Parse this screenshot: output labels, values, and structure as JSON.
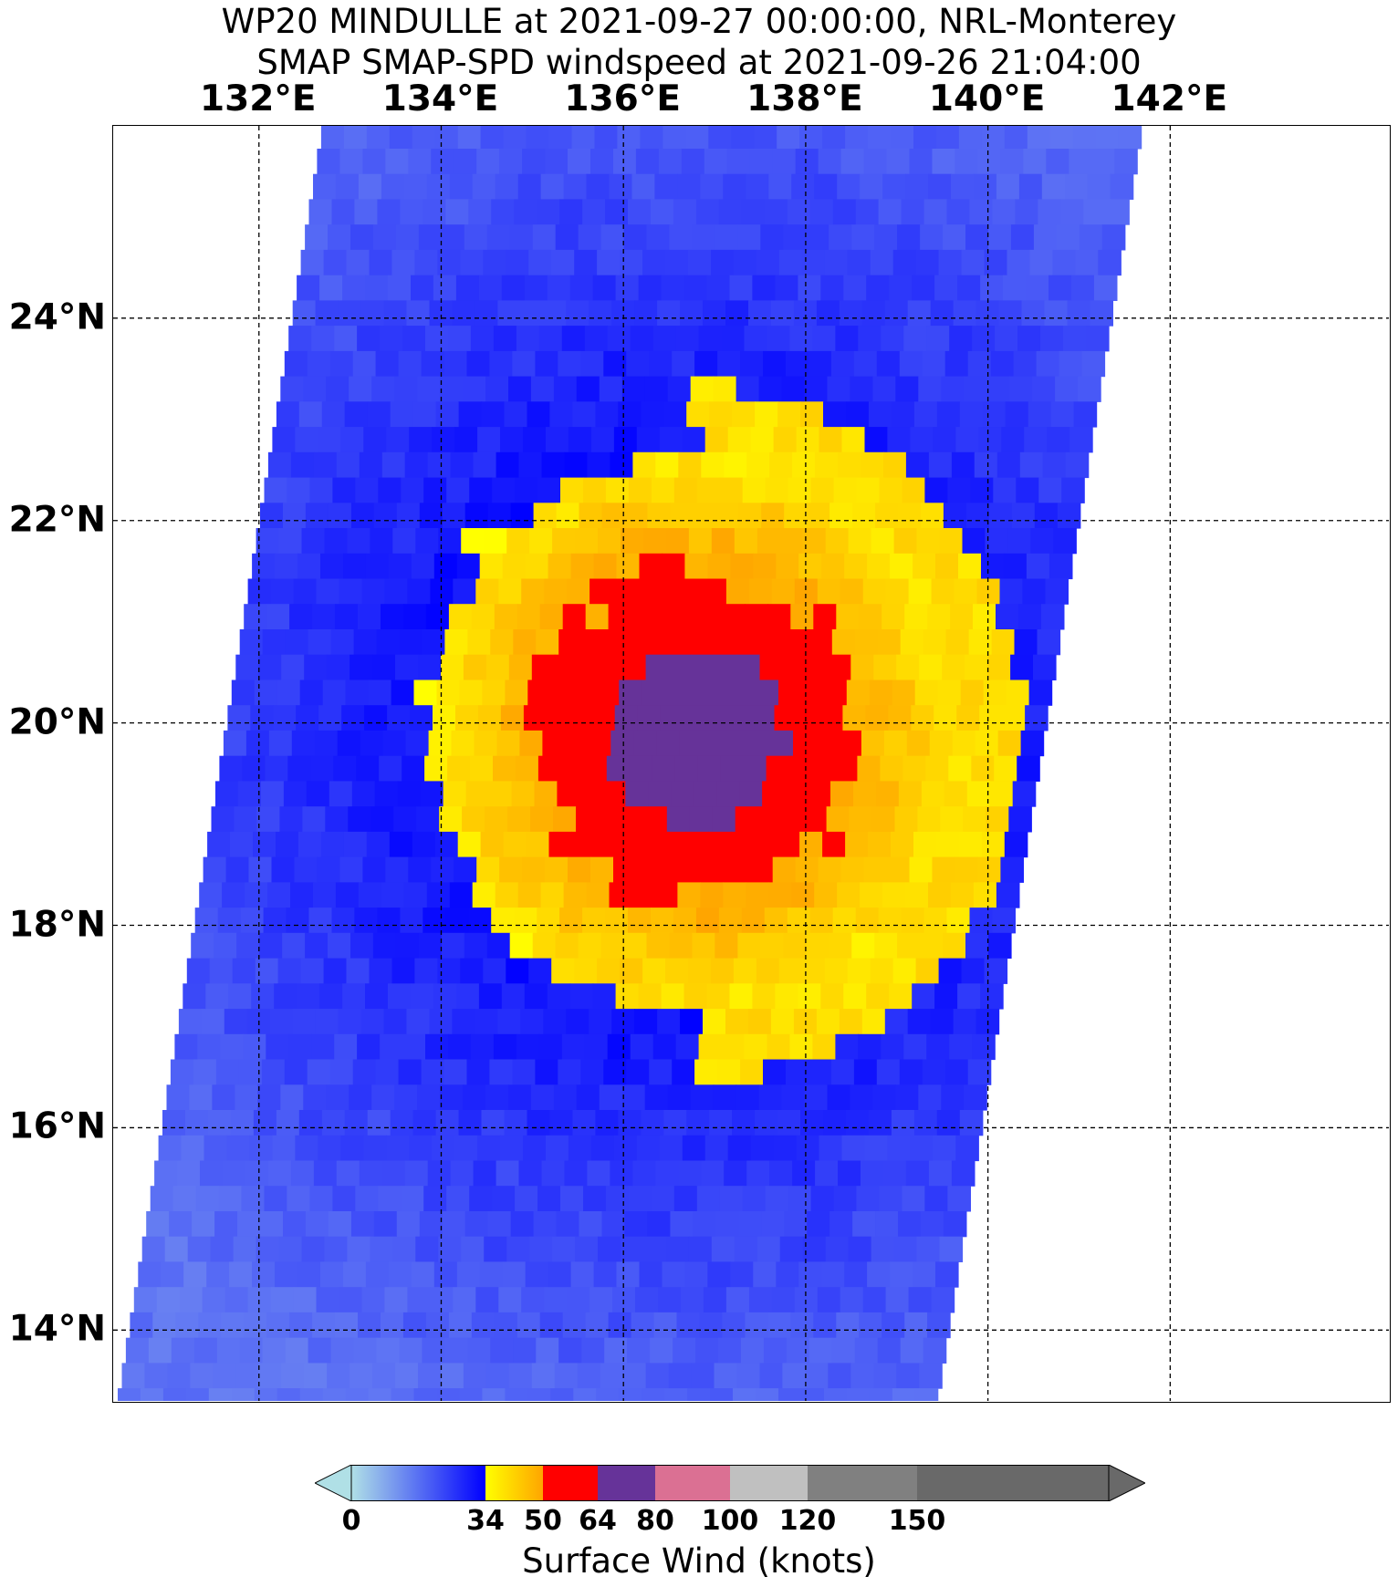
{
  "title": {
    "line1": "WP20 MINDULLE at 2021-09-27 00:00:00, NRL-Monterey",
    "line2": "SMAP SMAP-SPD windspeed at 2021-09-26 21:04:00"
  },
  "map": {
    "lon_range": [
      130.4,
      144.4
    ],
    "lat_range": [
      13.3,
      25.9
    ],
    "lon_ticks": [
      {
        "value": 132,
        "label": "132°E"
      },
      {
        "value": 134,
        "label": "134°E"
      },
      {
        "value": 136,
        "label": "136°E"
      },
      {
        "value": 138,
        "label": "138°E"
      },
      {
        "value": 140,
        "label": "140°E"
      },
      {
        "value": 142,
        "label": "142°E"
      }
    ],
    "lat_ticks": [
      {
        "value": 24,
        "label": "24°N"
      },
      {
        "value": 22,
        "label": "22°N"
      },
      {
        "value": 20,
        "label": "20°N"
      },
      {
        "value": 18,
        "label": "18°N"
      },
      {
        "value": 16,
        "label": "16°N"
      },
      {
        "value": 14,
        "label": "14°N"
      }
    ],
    "gridlines": "dashed",
    "storm_center": {
      "lon": 136.8,
      "lat": 19.9
    },
    "swath": "diagonal SMAP swath, roughly 131.7°E-141.6°E in the north to 130.5°E-139.3°E in the south"
  },
  "colorbar": {
    "label": "Surface Wind (knots)",
    "ticks": [
      "0",
      "34",
      "50",
      "64",
      "80",
      "100",
      "120",
      "150"
    ],
    "segments": [
      {
        "from": 0,
        "to": 34,
        "colors": [
          "#b0e0e6",
          "#0000ff"
        ]
      },
      {
        "from": 34,
        "to": 50,
        "colors": [
          "#ffff00",
          "#ffa500"
        ]
      },
      {
        "from": 50,
        "to": 64,
        "colors": [
          "#ff0000"
        ]
      },
      {
        "from": 64,
        "to": 80,
        "colors": [
          "#663399"
        ]
      },
      {
        "from": 80,
        "to": 100,
        "colors": [
          "#db7093"
        ]
      },
      {
        "from": 100,
        "to": 120,
        "colors": [
          "#c0c0c0"
        ]
      },
      {
        "from": 120,
        "to": 150,
        "colors": [
          "#808080"
        ]
      },
      {
        "from": 150,
        "to": 180,
        "colors": [
          "#696969"
        ]
      }
    ]
  }
}
